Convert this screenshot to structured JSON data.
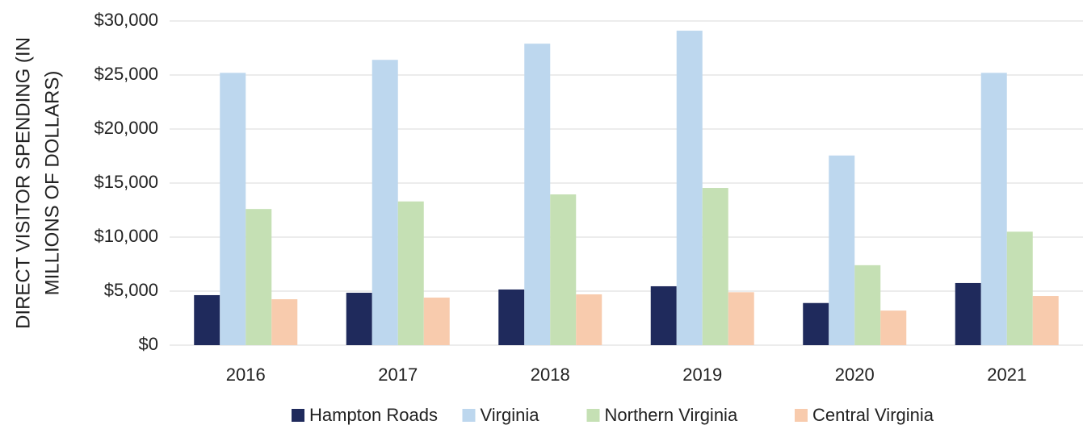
{
  "chart_data": {
    "type": "bar",
    "y_label": [
      "DIRECT VISITOR SPENDING (IN",
      "MILLIONS OF DOLLARS)"
    ],
    "categories": [
      "2016",
      "2017",
      "2018",
      "2019",
      "2020",
      "2021"
    ],
    "series": [
      {
        "name": "Hampton Roads",
        "color": "#1f2a5c",
        "values": [
          4630,
          4850,
          5150,
          5450,
          3900,
          5750
        ]
      },
      {
        "name": "Virginia",
        "color": "#bdd7ee",
        "values": [
          25200,
          26400,
          27900,
          29100,
          17550,
          25200
        ]
      },
      {
        "name": "Northern Virginia",
        "color": "#c5e0b4",
        "values": [
          12600,
          13300,
          13950,
          14550,
          7400,
          10500
        ]
      },
      {
        "name": "Central Virginia",
        "color": "#f8cbad",
        "values": [
          4250,
          4400,
          4700,
          4900,
          3200,
          4550
        ]
      }
    ],
    "ylim": [
      0,
      30000
    ],
    "yticks": [
      {
        "value": 0,
        "label": "$0"
      },
      {
        "value": 5000,
        "label": "$5,000"
      },
      {
        "value": 10000,
        "label": "$10,000"
      },
      {
        "value": 15000,
        "label": "$15,000"
      },
      {
        "value": 20000,
        "label": "$20,000"
      },
      {
        "value": 25000,
        "label": "$25,000"
      },
      {
        "value": 30000,
        "label": "$30,000"
      }
    ],
    "grid": true,
    "legend": "bottom"
  }
}
